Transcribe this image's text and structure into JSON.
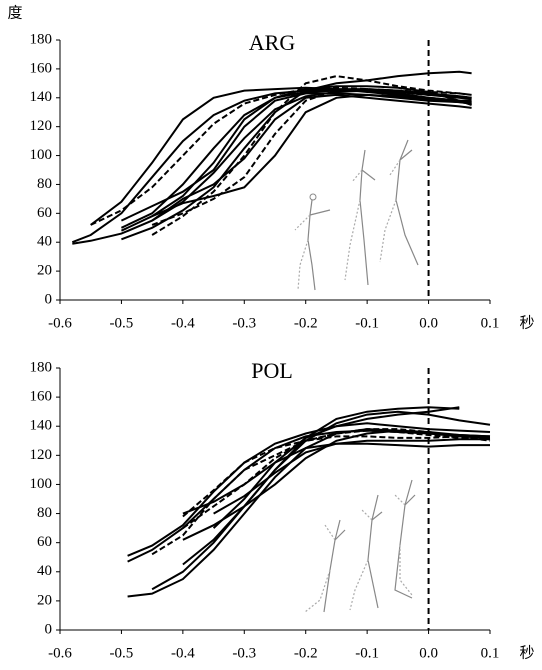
{
  "chart_data": [
    {
      "type": "line",
      "title": "ARG",
      "ylabel": "度",
      "xlabel": "秒",
      "x": [
        -0.58,
        -0.55,
        -0.5,
        -0.45,
        -0.4,
        -0.35,
        -0.3,
        -0.25,
        -0.2,
        -0.15,
        -0.1,
        -0.05,
        0,
        0.05,
        0.07
      ],
      "xlim": [
        -0.6,
        0.1
      ],
      "ylim": [
        0,
        180
      ],
      "xticks": [
        -0.6,
        -0.5,
        -0.4,
        -0.3,
        -0.2,
        -0.1,
        {
          "value": 0,
          "label": "0.0"
        },
        0.1
      ],
      "yticks": [
        0,
        20,
        40,
        60,
        80,
        100,
        120,
        140,
        160,
        180
      ],
      "reference_line": 0,
      "series": [
        {
          "color": "#000",
          "dash": false,
          "values": [
            39,
            41,
            46,
            55,
            68,
            88,
            112,
            132,
            141,
            144,
            145,
            144,
            142,
            140,
            139
          ]
        },
        {
          "color": "#000",
          "dash": false,
          "values": [
            40,
            45,
            60,
            85,
            110,
            128,
            138,
            143,
            145,
            146,
            146,
            145,
            143,
            141,
            140
          ]
        },
        {
          "color": "#000",
          "dash": true,
          "values": [
            null,
            52,
            62,
            78,
            100,
            122,
            136,
            142,
            146,
            147,
            146,
            145,
            144,
            143,
            142
          ]
        },
        {
          "color": "#000",
          "dash": false,
          "values": [
            null,
            52,
            68,
            95,
            125,
            140,
            145,
            146,
            147,
            146,
            144,
            142,
            140,
            138,
            138
          ]
        },
        {
          "color": "#000",
          "dash": false,
          "values": [
            null,
            null,
            42,
            50,
            62,
            78,
            105,
            130,
            145,
            150,
            152,
            155,
            157,
            158,
            157
          ]
        },
        {
          "color": "#000",
          "dash": true,
          "values": [
            null,
            null,
            null,
            45,
            58,
            75,
            100,
            130,
            150,
            155,
            152,
            148,
            145,
            143,
            142
          ]
        },
        {
          "color": "#000",
          "dash": false,
          "values": [
            null,
            null,
            48,
            58,
            72,
            95,
            125,
            140,
            146,
            148,
            148,
            147,
            144,
            138,
            135
          ]
        },
        {
          "color": "#000",
          "dash": false,
          "values": [
            null,
            null,
            null,
            55,
            70,
            80,
            98,
            125,
            140,
            142,
            140,
            138,
            136,
            134,
            133
          ]
        },
        {
          "color": "#000",
          "dash": false,
          "values": [
            null,
            null,
            55,
            65,
            75,
            90,
            120,
            138,
            143,
            143,
            142,
            140,
            138,
            137,
            136
          ]
        },
        {
          "color": "#000",
          "dash": false,
          "values": [
            null,
            null,
            null,
            58,
            67,
            72,
            78,
            100,
            130,
            140,
            142,
            141,
            139,
            137,
            136
          ]
        },
        {
          "color": "#000",
          "dash": true,
          "values": [
            null,
            null,
            null,
            52,
            60,
            70,
            85,
            115,
            138,
            145,
            146,
            144,
            142,
            141,
            140
          ]
        },
        {
          "color": "#000",
          "dash": false,
          "values": [
            null,
            null,
            50,
            60,
            80,
            105,
            128,
            140,
            144,
            145,
            145,
            143,
            140,
            138,
            137
          ]
        }
      ]
    },
    {
      "type": "line",
      "title": "POL",
      "xlabel": "秒",
      "x": [
        -0.49,
        -0.45,
        -0.4,
        -0.35,
        -0.3,
        -0.25,
        -0.2,
        -0.15,
        -0.1,
        -0.05,
        0,
        0.05,
        0.1
      ],
      "xlim": [
        -0.6,
        0.1
      ],
      "ylim": [
        0,
        180
      ],
      "xticks": [
        -0.6,
        -0.5,
        -0.4,
        -0.3,
        -0.2,
        -0.1,
        {
          "value": 0,
          "label": "0.0"
        },
        0.1
      ],
      "yticks": [
        0,
        20,
        40,
        60,
        80,
        100,
        120,
        140,
        160,
        180
      ],
      "reference_line": 0,
      "series": [
        {
          "color": "#000",
          "dash": false,
          "values": [
            23,
            25,
            35,
            55,
            80,
            105,
            125,
            135,
            138,
            137,
            135,
            133,
            132
          ]
        },
        {
          "color": "#000",
          "dash": false,
          "values": [
            47,
            55,
            70,
            90,
            110,
            125,
            133,
            136,
            137,
            136,
            135,
            134,
            133
          ]
        },
        {
          "color": "#000",
          "dash": false,
          "values": [
            51,
            58,
            72,
            95,
            115,
            128,
            135,
            140,
            145,
            148,
            150,
            153,
            null
          ]
        },
        {
          "color": "#000",
          "dash": true,
          "values": [
            null,
            52,
            65,
            90,
            110,
            120,
            130,
            135,
            137,
            136,
            134,
            132,
            131
          ]
        },
        {
          "color": "#000",
          "dash": false,
          "values": [
            null,
            null,
            45,
            62,
            85,
            110,
            130,
            142,
            148,
            150,
            148,
            144,
            141
          ]
        },
        {
          "color": "#000",
          "dash": false,
          "values": [
            null,
            28,
            40,
            60,
            85,
            110,
            132,
            145,
            150,
            152,
            153,
            152,
            null
          ]
        },
        {
          "color": "#000",
          "dash": true,
          "values": [
            null,
            null,
            78,
            96,
            115,
            125,
            130,
            135,
            138,
            138,
            136,
            133,
            130
          ]
        },
        {
          "color": "#000",
          "dash": false,
          "values": [
            null,
            null,
            80,
            88,
            100,
            115,
            125,
            128,
            130,
            130,
            130,
            131,
            131
          ]
        },
        {
          "color": "#000",
          "dash": false,
          "values": [
            null,
            null,
            null,
            70,
            90,
            115,
            132,
            140,
            142,
            140,
            138,
            137,
            136
          ]
        },
        {
          "color": "#000",
          "dash": false,
          "values": [
            null,
            null,
            62,
            72,
            85,
            100,
            118,
            130,
            135,
            137,
            136,
            134,
            133
          ]
        },
        {
          "color": "#000",
          "dash": false,
          "values": [
            null,
            null,
            null,
            80,
            92,
            108,
            122,
            128,
            128,
            127,
            126,
            127,
            127
          ]
        },
        {
          "color": "#000",
          "dash": true,
          "values": [
            null,
            null,
            70,
            85,
            100,
            118,
            130,
            133,
            133,
            132,
            132,
            133,
            133
          ]
        }
      ]
    }
  ]
}
